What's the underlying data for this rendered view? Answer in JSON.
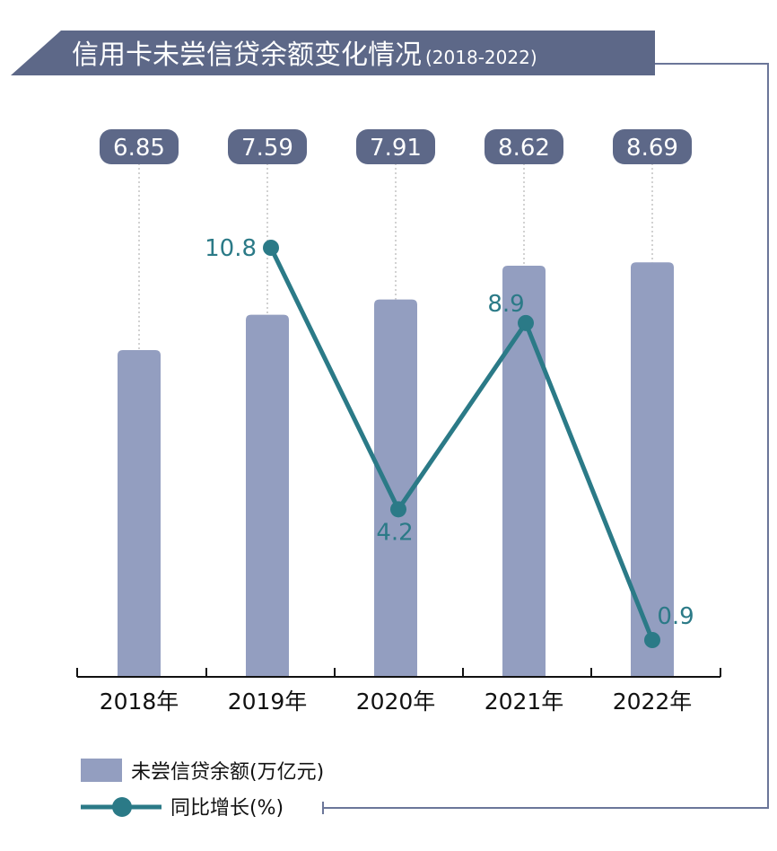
{
  "chart_data": {
    "type": "bar",
    "title": "信用卡未尝信贷余额变化情况",
    "subtitle": "(2018-2022)",
    "categories": [
      "2018年",
      "2019年",
      "2020年",
      "2021年",
      "2022年"
    ],
    "series": [
      {
        "name": "未尝信贷余额(万亿元)",
        "type": "bar",
        "values": [
          6.85,
          7.59,
          7.91,
          8.62,
          8.69
        ]
      },
      {
        "name": "同比增长(%)",
        "type": "line",
        "values": [
          null,
          10.8,
          4.2,
          8.9,
          0.9
        ]
      }
    ],
    "bar_value_labels": [
      "6.85",
      "7.59",
      "7.91",
      "8.62",
      "8.69"
    ],
    "line_value_labels": [
      "",
      "10.8",
      "4.2",
      "8.9",
      "0.9"
    ],
    "legend_placement": "bottom-left",
    "grid": false,
    "colors": {
      "bar": "#939ec0",
      "label_pill": "#5d6888",
      "title_band": "#5d6888",
      "line": "#2b7a87",
      "frame": "#6b7699",
      "axis": "#111111"
    }
  }
}
